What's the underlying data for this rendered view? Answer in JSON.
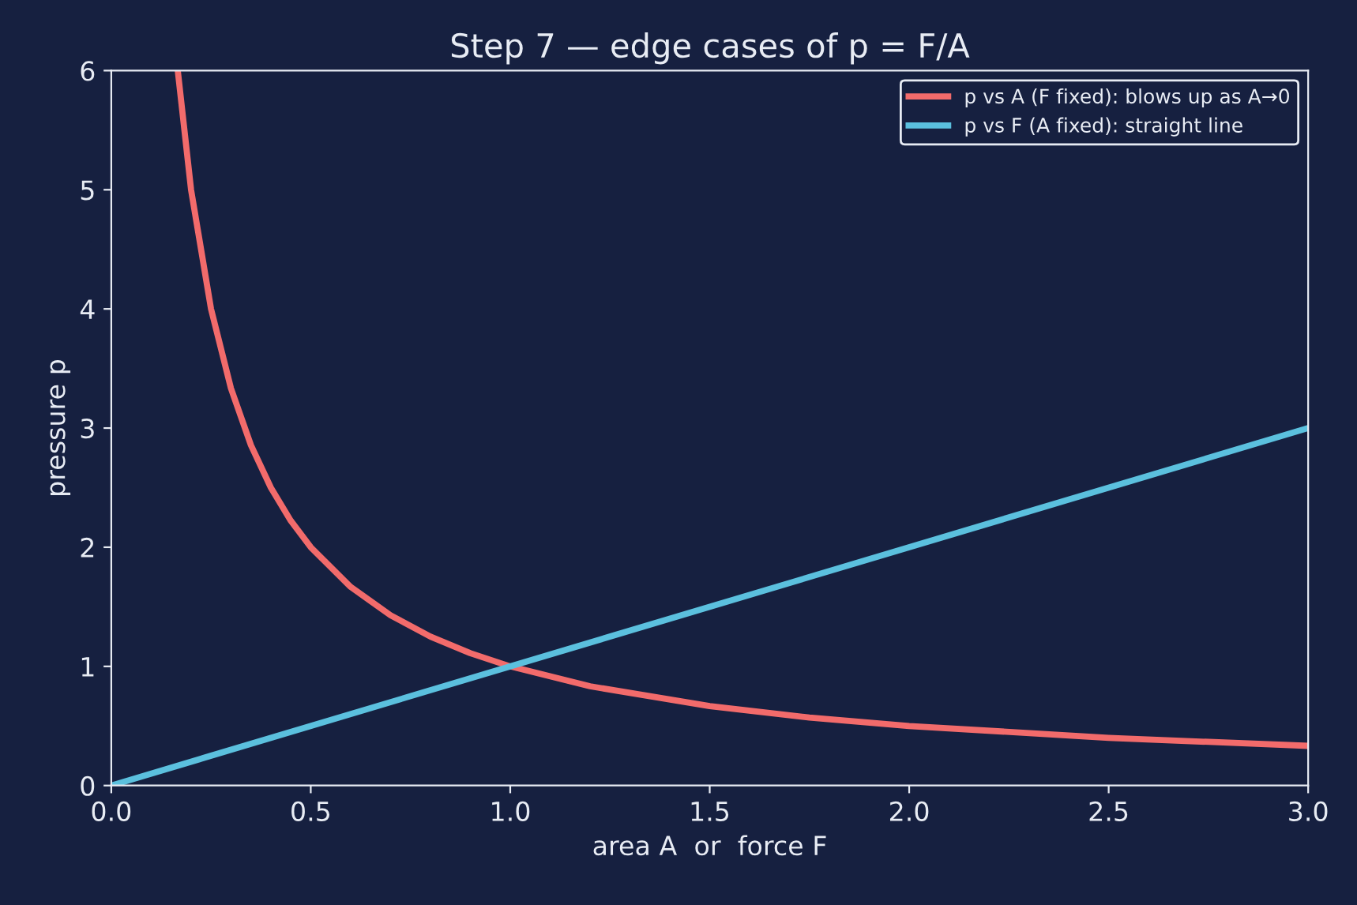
{
  "chart_data": {
    "type": "line",
    "title": "Step 7 — edge cases of p = F/A",
    "xlabel": "area A  or  force F",
    "ylabel": "pressure p",
    "series": [
      {
        "name": "p vs A (F fixed): blows up as A→0",
        "color": "#f26b6b",
        "x": [
          0.1667,
          0.2,
          0.25,
          0.3,
          0.35,
          0.4,
          0.45,
          0.5,
          0.6,
          0.7,
          0.8,
          0.9,
          1.0,
          1.2,
          1.5,
          1.75,
          2.0,
          2.5,
          3.0
        ],
        "values": [
          6.0,
          5.0,
          4.0,
          3.333,
          2.857,
          2.5,
          2.222,
          2.0,
          1.667,
          1.429,
          1.25,
          1.111,
          1.0,
          0.833,
          0.667,
          0.571,
          0.5,
          0.4,
          0.333
        ]
      },
      {
        "name": "p vs F (A fixed): straight line",
        "color": "#5bc0de",
        "x": [
          0.0,
          3.0
        ],
        "values": [
          0.0,
          3.0
        ]
      }
    ],
    "xlim": [
      0,
      3
    ],
    "ylim": [
      0,
      6
    ],
    "xticks": [
      {
        "value": 0,
        "label": "0.0"
      },
      0.5,
      {
        "value": 1,
        "label": "1.0"
      },
      1.5,
      {
        "value": 2,
        "label": "2.0"
      },
      2.5,
      {
        "value": 3,
        "label": "3.0"
      }
    ],
    "yticks": [
      0,
      1,
      2,
      3,
      4,
      5,
      6
    ],
    "grid": false,
    "legend": "top right",
    "marker": "none",
    "line_style": "solid"
  }
}
